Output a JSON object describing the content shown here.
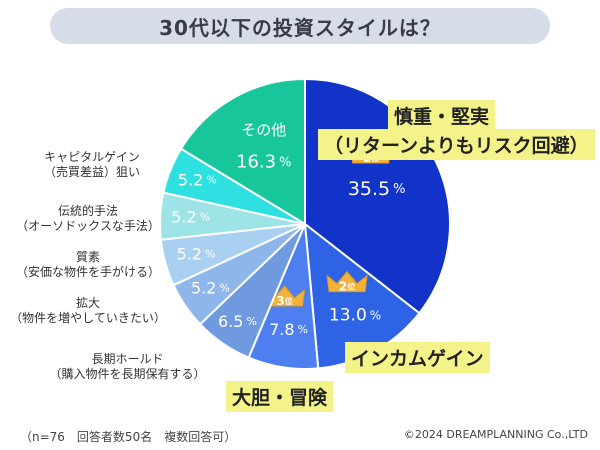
{
  "title": "30代以下の投資スタイルは？",
  "chart_data": {
    "type": "pie",
    "title": "30代以下の投資スタイルは？",
    "unit": "%",
    "slices": [
      {
        "label": "慎重・堅実（リターンよりもリスク回避）",
        "value": 35.5,
        "color": "#1133c8",
        "rank": "1"
      },
      {
        "label": "インカムゲイン",
        "value": 13.0,
        "color": "#2e63e6",
        "rank": "2"
      },
      {
        "label": "大胆・冒険",
        "value": 7.8,
        "color": "#4d7ff0",
        "rank": "3"
      },
      {
        "label": "長期ホールド（購入物件を長期保有する）",
        "value": 6.5,
        "color": "#6f9ae0"
      },
      {
        "label": "拡大（物件を増やしていきたい）",
        "value": 5.2,
        "color": "#8fb6ea"
      },
      {
        "label": "質素（安価な物件を手がける）",
        "value": 5.2,
        "color": "#a9d0f0"
      },
      {
        "label": "伝統的手法（オーソドックスな手法）",
        "value": 5.2,
        "color": "#9ee3e6"
      },
      {
        "label": "キャピタルゲイン（売買差益）狙い",
        "value": 5.2,
        "color": "#2ee0e0"
      },
      {
        "label": "その他",
        "value": 16.3,
        "color": "#17c69a"
      }
    ],
    "value_labels": [
      "35.5",
      "13.0",
      "7.8",
      "6.5",
      "5.2",
      "5.2",
      "5.2",
      "5.2",
      "16.3"
    ],
    "rank_suffix": "位"
  },
  "labels": {
    "cautious_line1": "慎重・堅実",
    "cautious_line2": "（リターンよりもリスク回避）",
    "income": "インカムゲイン",
    "bold": "大胆・冒険",
    "other": "その他",
    "capital_line1": "キャピタルゲイン",
    "capital_line2": "（売買差益）狙い",
    "traditional_line1": "伝統的手法",
    "traditional_line2": "（オーソドックスな手法）",
    "frugal_line1": "質素",
    "frugal_line2": "（安価な物件を手がける）",
    "expand_line1": "拡大",
    "expand_line2": "（物件を増やしていきたい）",
    "longhold_line1": "長期ホールド",
    "longhold_line2": "（購入物件を長期保有する）"
  },
  "footer": {
    "note": "（n=76　回答者数50名　複数回答可）",
    "copyright": "©2024 DREAMPLANNING Co.,LTD"
  },
  "colors": {
    "title_bg": "#d6dde8",
    "highlight": "#f3f38a",
    "crown": "#f2b138"
  }
}
